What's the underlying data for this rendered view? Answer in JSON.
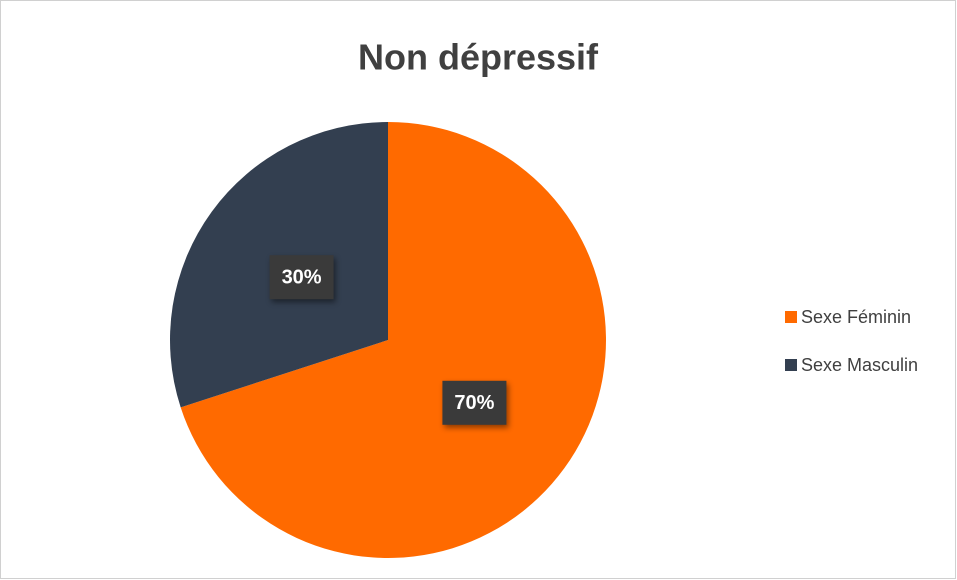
{
  "chart_data": {
    "type": "pie",
    "title": "Non dépressif",
    "categories": [
      "Sexe Féminin",
      "Sexe Masculin"
    ],
    "values": [
      70,
      30
    ],
    "value_labels": [
      "70%",
      "30%"
    ],
    "colors": [
      "#ff6a00",
      "#333f50"
    ],
    "legend": "right"
  }
}
